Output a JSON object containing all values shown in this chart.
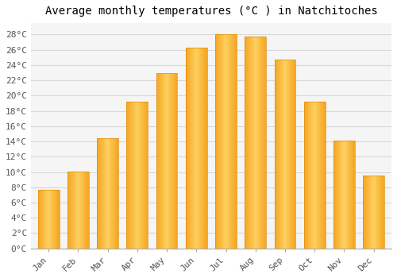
{
  "title": "Average monthly temperatures (°C ) in Natchitoches",
  "months": [
    "Jan",
    "Feb",
    "Mar",
    "Apr",
    "May",
    "Jun",
    "Jul",
    "Aug",
    "Sep",
    "Oct",
    "Nov",
    "Dec"
  ],
  "values": [
    7.7,
    10.1,
    14.4,
    19.2,
    23.0,
    26.3,
    28.0,
    27.7,
    24.7,
    19.2,
    14.1,
    9.5
  ],
  "bar_color_left": "#F5A623",
  "bar_color_center": "#FFD060",
  "bar_color_right": "#F5A623",
  "bar_edge_color": "#E09010",
  "ylim": [
    0,
    29.5
  ],
  "yticks": [
    0,
    2,
    4,
    6,
    8,
    10,
    12,
    14,
    16,
    18,
    20,
    22,
    24,
    26,
    28
  ],
  "ytick_labels": [
    "0°C",
    "2°C",
    "4°C",
    "6°C",
    "8°C",
    "10°C",
    "12°C",
    "14°C",
    "16°C",
    "18°C",
    "20°C",
    "22°C",
    "24°C",
    "26°C",
    "28°C"
  ],
  "grid_color": "#d8d8d8",
  "plot_bg_color": "#f5f5f5",
  "fig_bg_color": "#ffffff",
  "title_fontsize": 10,
  "tick_fontsize": 8,
  "bar_width": 0.72
}
